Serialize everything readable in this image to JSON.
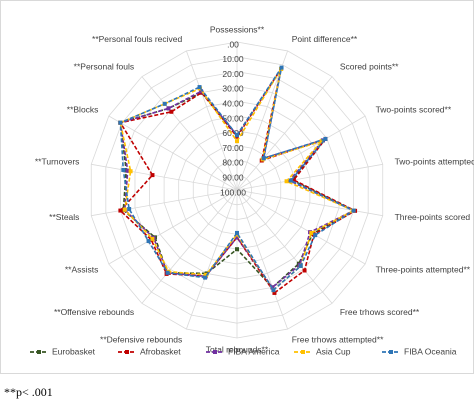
{
  "chart_data": {
    "type": "radar",
    "categories": [
      "Possessions**",
      "Point difference**",
      "Scored points**",
      "Two-points scored**",
      "Two-points attempted**",
      "Three-points scored",
      "Three-points attempted**",
      "Free trhows scored**",
      "Free trhows attempted**",
      "Total rebounds**",
      "**Defensive rebounds",
      "**Offensive rebounds",
      "**Assists",
      "**Steals",
      "**Turnovers",
      "**Blocks",
      "**Personal fouls",
      "**Personal fouls recived"
    ],
    "series": [
      {
        "name": "Eurobasket",
        "color": "#375623",
        "values": [
          63,
          13,
          72,
          33,
          62,
          20,
          41,
          35,
          30,
          60,
          40,
          27,
          36,
          22,
          24,
          9,
          28,
          30
        ]
      },
      {
        "name": "Afrobasket",
        "color": "#c00000",
        "values": [
          64,
          13,
          74,
          31,
          61,
          19,
          40,
          29,
          26,
          68,
          38,
          26,
          33,
          20,
          42,
          9,
          31,
          30
        ]
      },
      {
        "name": "FIBA America",
        "color": "#7030a0",
        "values": [
          63,
          13,
          72,
          33,
          64,
          20,
          43,
          34,
          30,
          68,
          38,
          27,
          35,
          23,
          25,
          9,
          28,
          29
        ]
      },
      {
        "name": "Asia Cup",
        "color": "#ffc000",
        "values": [
          67,
          13,
          73,
          34,
          66,
          20,
          42,
          33,
          28,
          70,
          39,
          28,
          34,
          23,
          27,
          9,
          24,
          27
        ]
      },
      {
        "name": "FIBA Oceania",
        "color": "#2e75b6",
        "values": [
          63,
          12,
          72,
          31,
          63,
          20,
          39,
          33,
          28,
          71,
          37,
          27,
          31,
          26,
          22,
          9,
          24,
          26
        ]
      }
    ],
    "rlim": [
      0,
      100
    ],
    "radial_reversed": true,
    "rticks": [
      {
        "value": 0,
        "label": ".00"
      },
      {
        "value": 10,
        "label": "10.00"
      },
      {
        "value": 20,
        "label": "20.00"
      },
      {
        "value": 30,
        "label": "30.00"
      },
      {
        "value": 40,
        "label": "40.00"
      },
      {
        "value": 50,
        "label": "50.00"
      },
      {
        "value": 60,
        "label": "60.00"
      },
      {
        "value": 70,
        "label": "70.00"
      },
      {
        "value": 80,
        "label": "80.00"
      },
      {
        "value": 90,
        "label": "90.00"
      },
      {
        "value": 100,
        "label": "100.00"
      }
    ],
    "grid": true,
    "legend": "bottom",
    "note": "**p< .001"
  }
}
